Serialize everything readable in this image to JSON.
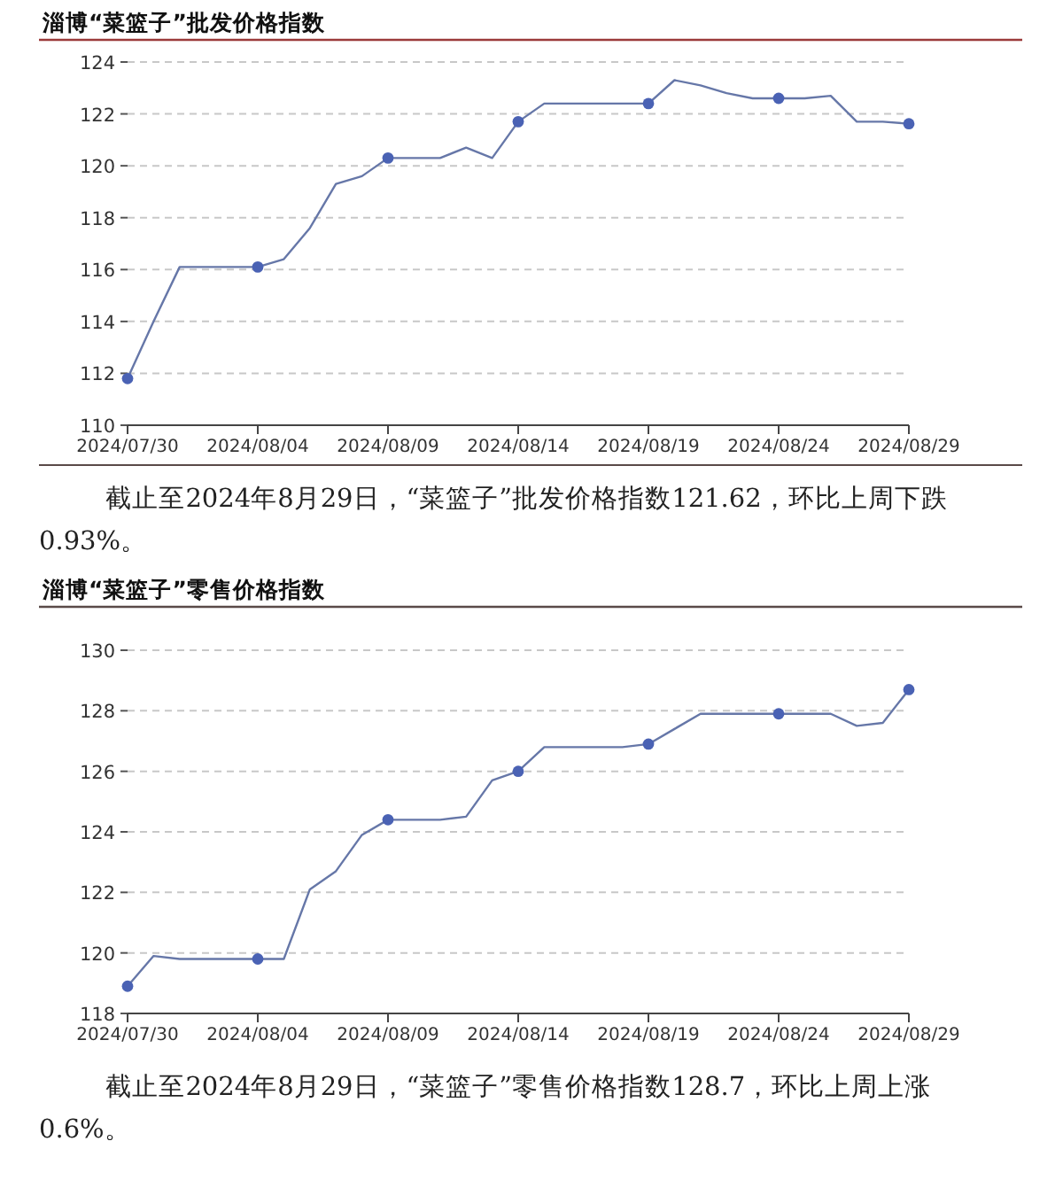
{
  "chart_data": [
    {
      "type": "line",
      "title": "淄博“菜篮子”批发价格指数",
      "x": [
        "2024-07-30",
        "2024-07-31",
        "2024-08-01",
        "2024-08-02",
        "2024-08-03",
        "2024-08-04",
        "2024-08-05",
        "2024-08-06",
        "2024-08-07",
        "2024-08-08",
        "2024-08-09",
        "2024-08-10",
        "2024-08-11",
        "2024-08-12",
        "2024-08-13",
        "2024-08-14",
        "2024-08-15",
        "2024-08-16",
        "2024-08-17",
        "2024-08-18",
        "2024-08-19",
        "2024-08-20",
        "2024-08-21",
        "2024-08-22",
        "2024-08-23",
        "2024-08-24",
        "2024-08-25",
        "2024-08-26",
        "2024-08-27",
        "2024-08-28",
        "2024-08-29"
      ],
      "series": [
        {
          "color": "#6677a8",
          "values": [
            111.8,
            114.0,
            116.1,
            116.1,
            116.1,
            116.1,
            116.4,
            117.6,
            119.3,
            119.6,
            120.3,
            120.3,
            120.3,
            120.7,
            120.3,
            121.7,
            122.4,
            122.4,
            122.4,
            122.4,
            122.4,
            123.3,
            123.1,
            122.8,
            122.6,
            122.6,
            122.6,
            122.7,
            121.7,
            121.7,
            121.62
          ]
        },
        {
          "type": "scatter",
          "marker": "circle",
          "color": "#4a62b4",
          "x": [
            "2024-07-30",
            "2024-08-04",
            "2024-08-09",
            "2024-08-14",
            "2024-08-19",
            "2024-08-24",
            "2024-08-29"
          ],
          "values": [
            111.8,
            116.1,
            120.3,
            121.7,
            122.4,
            122.6,
            121.62
          ]
        }
      ],
      "xlim": [
        "2024-07-30",
        "2024-08-29"
      ],
      "xticks": [
        {
          "value": "2024-07-30",
          "label": "2024/07/30"
        },
        {
          "value": "2024-08-04",
          "label": "2024/08/04"
        },
        {
          "value": "2024-08-09",
          "label": "2024/08/09"
        },
        {
          "value": "2024-08-14",
          "label": "2024/08/14"
        },
        {
          "value": "2024-08-19",
          "label": "2024/08/19"
        },
        {
          "value": "2024-08-24",
          "label": "2024/08/24"
        },
        {
          "value": "2024-08-29",
          "label": "2024/08/29"
        }
      ],
      "ylim": [
        110,
        124
      ],
      "yticks": [
        110,
        112,
        114,
        116,
        118,
        120,
        122,
        124
      ],
      "grid": "y",
      "annotations": [
        "截止至2024年8月29日，“菜篮子”批发价格指数121.62，环比上周下跌0.93%。"
      ]
    },
    {
      "type": "line",
      "title": "淄博“菜篮子”零售价格指数",
      "x": [
        "2024-07-30",
        "2024-07-31",
        "2024-08-01",
        "2024-08-02",
        "2024-08-03",
        "2024-08-04",
        "2024-08-05",
        "2024-08-06",
        "2024-08-07",
        "2024-08-08",
        "2024-08-09",
        "2024-08-10",
        "2024-08-11",
        "2024-08-12",
        "2024-08-13",
        "2024-08-14",
        "2024-08-15",
        "2024-08-16",
        "2024-08-17",
        "2024-08-18",
        "2024-08-19",
        "2024-08-20",
        "2024-08-21",
        "2024-08-22",
        "2024-08-23",
        "2024-08-24",
        "2024-08-25",
        "2024-08-26",
        "2024-08-27",
        "2024-08-28",
        "2024-08-29"
      ],
      "series": [
        {
          "color": "#6677a8",
          "values": [
            118.9,
            119.9,
            119.8,
            119.8,
            119.8,
            119.8,
            119.8,
            122.1,
            122.7,
            123.9,
            124.4,
            124.4,
            124.4,
            124.5,
            125.7,
            126.0,
            126.8,
            126.8,
            126.8,
            126.8,
            126.9,
            127.4,
            127.9,
            127.9,
            127.9,
            127.9,
            127.9,
            127.9,
            127.5,
            127.6,
            128.7
          ]
        },
        {
          "type": "scatter",
          "marker": "circle",
          "color": "#4a62b4",
          "x": [
            "2024-07-30",
            "2024-08-04",
            "2024-08-09",
            "2024-08-14",
            "2024-08-19",
            "2024-08-24",
            "2024-08-29"
          ],
          "values": [
            118.9,
            119.8,
            124.4,
            126.0,
            126.9,
            127.9,
            128.7
          ]
        }
      ],
      "xlim": [
        "2024-07-30",
        "2024-08-29"
      ],
      "xticks": [
        {
          "value": "2024-07-30",
          "label": "2024/07/30"
        },
        {
          "value": "2024-08-04",
          "label": "2024/08/04"
        },
        {
          "value": "2024-08-09",
          "label": "2024/08/09"
        },
        {
          "value": "2024-08-14",
          "label": "2024/08/14"
        },
        {
          "value": "2024-08-19",
          "label": "2024/08/19"
        },
        {
          "value": "2024-08-24",
          "label": "2024/08/24"
        },
        {
          "value": "2024-08-29",
          "label": "2024/08/29"
        }
      ],
      "ylim": [
        118,
        130
      ],
      "yticks": [
        118,
        120,
        122,
        124,
        126,
        128,
        130
      ],
      "grid": "y",
      "annotations": [
        "截止至2024年8月29日，“菜篮子”零售价格指数128.7，环比上周上涨0.6%。"
      ]
    }
  ]
}
